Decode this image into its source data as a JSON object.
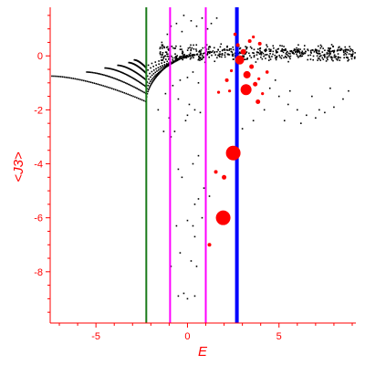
{
  "chart_data": {
    "type": "scatter",
    "title": "",
    "xlabel": "E",
    "ylabel": "<J3>",
    "xlim": [
      -7.5,
      9.2
    ],
    "ylim": [
      -9.9,
      1.8
    ],
    "x_ticks": [
      -5,
      0,
      5
    ],
    "x_tick_labels": [
      "-5",
      "0",
      "5"
    ],
    "y_ticks": [
      0,
      -2,
      -4,
      -6,
      -8
    ],
    "y_tick_labels": [
      "0",
      "-2",
      "-4",
      "-6",
      "-8"
    ],
    "grid": false,
    "legend": "none",
    "colors": {
      "axes": "#ff0000",
      "points": "#000000",
      "highlight": "#ff0000",
      "line_green": "#1a7a1a",
      "line_magenta": "#ff00ff",
      "line_blue": "#0000ff"
    },
    "vertical_lines": [
      {
        "x": -2.25,
        "color": "#1a7a1a",
        "weight": "thin"
      },
      {
        "x": -0.95,
        "color": "#ff00ff",
        "weight": "thin"
      },
      {
        "x": 1.0,
        "color": "#ff00ff",
        "weight": "thin"
      },
      {
        "x": 2.7,
        "color": "#0000ff",
        "weight": "thick"
      }
    ],
    "highlight_points": [
      {
        "x": 2.5,
        "y": -3.6,
        "r": 8
      },
      {
        "x": 1.95,
        "y": -6.0,
        "r": 8
      },
      {
        "x": 3.2,
        "y": -1.25,
        "r": 6
      },
      {
        "x": 3.25,
        "y": -0.7,
        "r": 4
      },
      {
        "x": 2.85,
        "y": -0.15,
        "r": 5
      },
      {
        "x": 3.05,
        "y": 0.15,
        "r": 3
      },
      {
        "x": 3.5,
        "y": -0.4,
        "r": 2.5
      },
      {
        "x": 3.85,
        "y": -1.7,
        "r": 2.5
      },
      {
        "x": 3.7,
        "y": -1.05,
        "r": 2.5
      },
      {
        "x": 1.55,
        "y": -4.3,
        "r": 2
      },
      {
        "x": 2.0,
        "y": -4.5,
        "r": 2.5
      },
      {
        "x": 1.2,
        "y": -7.0,
        "r": 2
      },
      {
        "x": 3.4,
        "y": 0.55,
        "r": 2
      },
      {
        "x": 2.75,
        "y": 0.4,
        "r": 2
      },
      {
        "x": 3.95,
        "y": 0.45,
        "r": 2
      },
      {
        "x": 2.15,
        "y": -0.9,
        "r": 2
      },
      {
        "x": 1.7,
        "y": -1.35,
        "r": 1.6
      },
      {
        "x": 2.3,
        "y": -1.3,
        "r": 1.6
      },
      {
        "x": 4.35,
        "y": -0.6,
        "r": 1.8
      },
      {
        "x": 2.6,
        "y": 0.8,
        "r": 1.8
      },
      {
        "x": 4.1,
        "y": -1.4,
        "r": 1.6
      },
      {
        "x": 3.6,
        "y": 0.7,
        "r": 1.6
      },
      {
        "x": 2.4,
        "y": -0.55,
        "r": 1.6
      },
      {
        "x": 3.9,
        "y": -0.85,
        "r": 1.6
      }
    ],
    "branches": [
      {
        "x_start": -7.4,
        "y_start": -0.75,
        "x_end": -2.25,
        "y_end": -1.7,
        "x_ext": -1.0,
        "y_ext": -0.3,
        "n": 90
      },
      {
        "x_start": -5.5,
        "y_start": -0.6,
        "x_end": -2.25,
        "y_end": -1.4,
        "x_ext": -0.5,
        "y_ext": -0.15,
        "n": 70
      },
      {
        "x_start": -4.5,
        "y_start": -0.45,
        "x_end": -2.25,
        "y_end": -1.15,
        "x_ext": 0.0,
        "y_ext": 0.0,
        "n": 65
      },
      {
        "x_start": -3.8,
        "y_start": -0.35,
        "x_end": -2.25,
        "y_end": -0.9,
        "x_ext": 0.5,
        "y_ext": 0.05,
        "n": 60
      },
      {
        "x_start": -3.2,
        "y_start": -0.25,
        "x_end": -2.25,
        "y_end": -0.65,
        "x_ext": 1.0,
        "y_ext": 0.1,
        "n": 55
      },
      {
        "x_start": -2.9,
        "y_start": -0.15,
        "x_end": -2.25,
        "y_end": -0.45,
        "x_ext": 1.5,
        "y_ext": 0.15,
        "n": 50
      }
    ],
    "upper_band": {
      "x_min": -1.5,
      "x_max": 9.2,
      "y_center": 0.1,
      "y_spread": 0.35,
      "n": 520
    },
    "cloud_points": [
      [
        -1.4,
        0.5
      ],
      [
        -1.1,
        0.8
      ],
      [
        -0.9,
        1.1
      ],
      [
        -0.6,
        1.2
      ],
      [
        -0.3,
        0.9
      ],
      [
        0.2,
        1.3
      ],
      [
        0.5,
        1.1
      ],
      [
        0.8,
        1.4
      ],
      [
        1.1,
        1.0
      ],
      [
        1.3,
        1.2
      ],
      [
        1.6,
        1.4
      ],
      [
        -0.2,
        1.5
      ],
      [
        0.0,
        -0.8
      ],
      [
        0.3,
        -0.6
      ],
      [
        0.6,
        -1.0
      ],
      [
        -0.4,
        -0.9
      ],
      [
        -0.8,
        -1.1
      ],
      [
        -1.2,
        -1.4
      ],
      [
        -0.5,
        -1.6
      ],
      [
        0.1,
        -1.8
      ],
      [
        0.4,
        -2.0
      ],
      [
        0.0,
        -2.2
      ],
      [
        -1.6,
        -2.0
      ],
      [
        -1.0,
        -2.3
      ],
      [
        -0.7,
        -2.8
      ],
      [
        -0.1,
        -2.4
      ],
      [
        0.7,
        -2.1
      ],
      [
        -1.3,
        -2.8
      ],
      [
        -0.9,
        -3.0
      ],
      [
        -0.5,
        -4.2
      ],
      [
        -0.3,
        -4.5
      ],
      [
        0.3,
        -4.0
      ],
      [
        0.6,
        -3.7
      ],
      [
        0.6,
        -5.3
      ],
      [
        0.4,
        -5.5
      ],
      [
        1.2,
        -5.2
      ],
      [
        0.9,
        -4.9
      ],
      [
        -0.6,
        -6.3
      ],
      [
        0.0,
        -6.1
      ],
      [
        0.3,
        -6.3
      ],
      [
        0.8,
        -6.0
      ],
      [
        0.4,
        -6.7
      ],
      [
        0.5,
        -7.8
      ],
      [
        0.2,
        -7.6
      ],
      [
        -0.4,
        -7.3
      ],
      [
        0.4,
        -8.9
      ],
      [
        -0.2,
        -8.8
      ],
      [
        -0.5,
        -8.9
      ],
      [
        0.0,
        -9.0
      ],
      [
        -0.9,
        -7.8
      ],
      [
        1.0,
        -7.0
      ],
      [
        4.5,
        -1.2
      ],
      [
        5.0,
        -1.5
      ],
      [
        5.5,
        -1.8
      ],
      [
        6.0,
        -2.0
      ],
      [
        6.5,
        -2.2
      ],
      [
        7.0,
        -2.3
      ],
      [
        7.5,
        -2.1
      ],
      [
        8.0,
        -1.9
      ],
      [
        8.5,
        -1.6
      ],
      [
        5.3,
        -2.4
      ],
      [
        6.2,
        -2.5
      ],
      [
        7.2,
        -2.0
      ],
      [
        4.8,
        -0.9
      ],
      [
        5.6,
        -1.3
      ],
      [
        8.8,
        -1.3
      ],
      [
        6.8,
        -1.5
      ],
      [
        7.8,
        -1.2
      ],
      [
        4.2,
        -2.0
      ],
      [
        3.6,
        -2.4
      ],
      [
        3.0,
        -2.7
      ]
    ]
  }
}
